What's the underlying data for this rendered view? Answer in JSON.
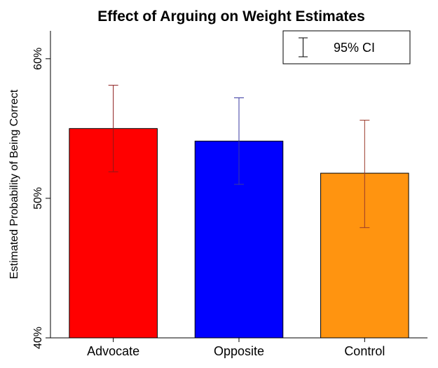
{
  "chart_data": {
    "type": "bar",
    "title": "Effect of Arguing on Weight Estimates",
    "ylabel": "Estimated Probability of Being Correct",
    "xlabel": "",
    "ylim": [
      0.4,
      0.62
    ],
    "yticks": [
      0.4,
      0.5,
      0.6
    ],
    "ytick_labels": [
      "40%",
      "50%",
      "60%"
    ],
    "categories": [
      "Advocate",
      "Opposite",
      "Control"
    ],
    "values": [
      0.55,
      0.541,
      0.518
    ],
    "ci_lower": [
      0.519,
      0.51,
      0.479
    ],
    "ci_upper": [
      0.581,
      0.572,
      0.556
    ],
    "bar_colors": [
      "#ff0000",
      "#0000ff",
      "#ff9410"
    ],
    "errorbar_colors": [
      "#8b1a1a",
      "#3a3aa0",
      "#9a3a2a"
    ],
    "legend": {
      "label": "95% CI",
      "position": "top-right"
    },
    "grid": false
  }
}
